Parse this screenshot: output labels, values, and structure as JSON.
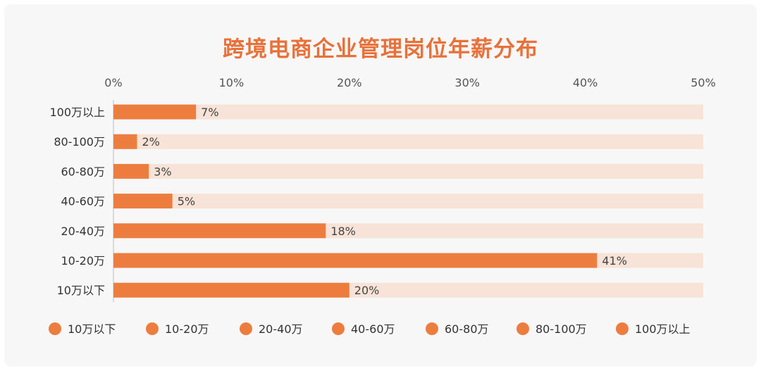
{
  "title": "跨境电商企业管理岗位年薪分布",
  "colors": {
    "bar": "#ed7d3f",
    "track": "#f7e3d7",
    "title": "#e8713a"
  },
  "chart_data": {
    "type": "bar",
    "orientation": "horizontal",
    "title": "跨境电商企业管理岗位年薪分布",
    "categories": [
      "100万以上",
      "80-100万",
      "60-80万",
      "40-60万",
      "20-40万",
      "10-20万",
      "10万以下"
    ],
    "values": [
      7,
      2,
      3,
      5,
      18,
      41,
      20
    ],
    "value_labels": [
      "7%",
      "2%",
      "3%",
      "5%",
      "18%",
      "41%",
      "20%"
    ],
    "xlim": [
      0,
      50
    ],
    "xticks": [
      0,
      10,
      20,
      30,
      40,
      50
    ],
    "xtick_labels": [
      "0%",
      "10%",
      "20%",
      "30%",
      "40%",
      "50%"
    ],
    "axis_position": "top",
    "grid": false,
    "legend_position": "bottom",
    "legend": [
      "10万以下",
      "10-20万",
      "20-40万",
      "40-60万",
      "60-80万",
      "80-100万",
      "100万以上"
    ]
  }
}
